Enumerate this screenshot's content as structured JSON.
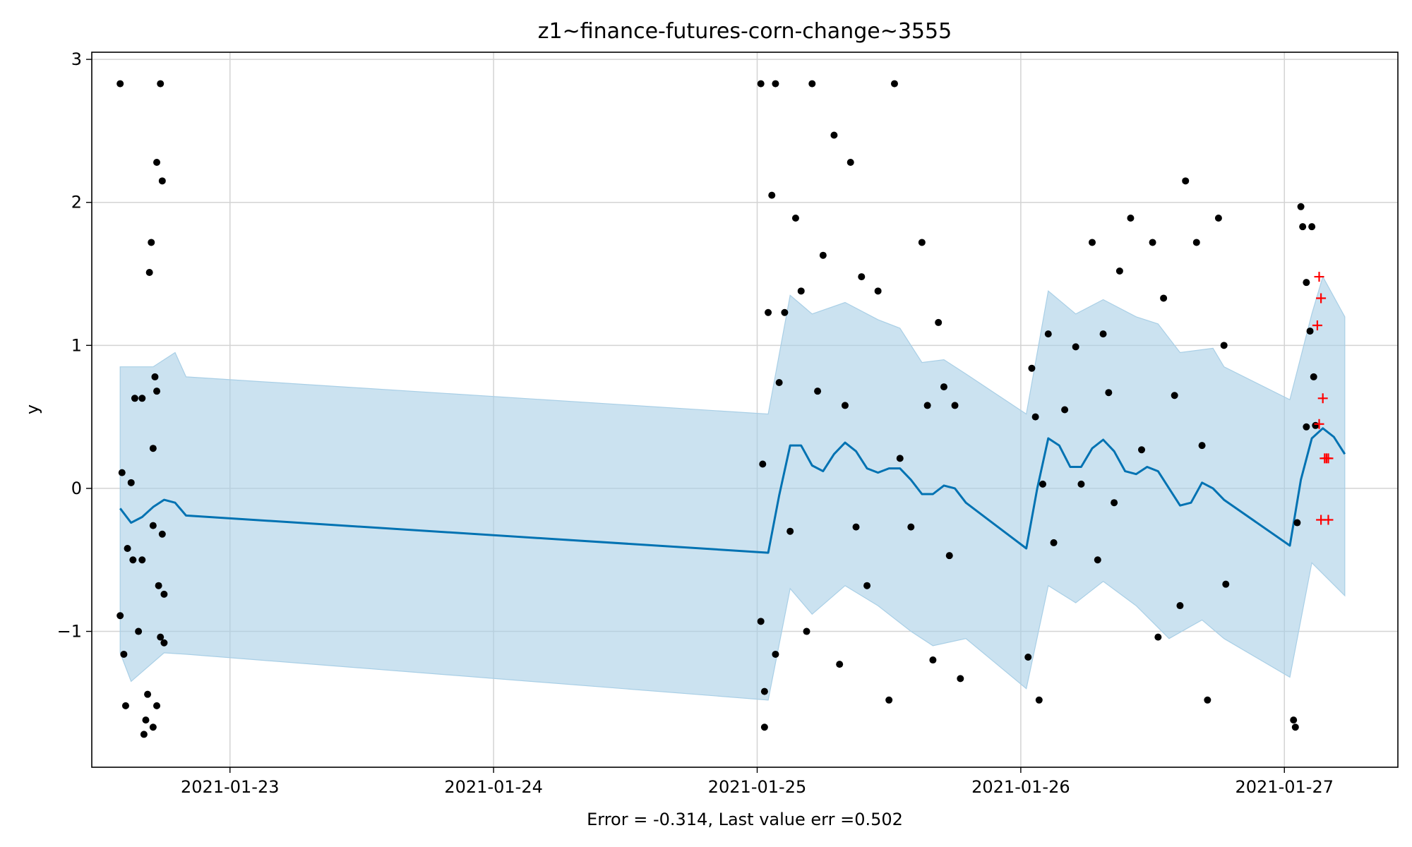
{
  "chart_data": {
    "type": "scatter",
    "title": "z1~finance-futures-corn-change~3555",
    "xlabel": "Error = -0.314, Last value err =0.502",
    "ylabel": "y",
    "x_ticks": [
      "2021-01-23",
      "2021-01-24",
      "2021-01-25",
      "2021-01-26",
      "2021-01-27"
    ],
    "y_ticks": [
      "−1",
      "0",
      "1",
      "2",
      "3"
    ],
    "xlim": [
      "2021-01-22T11:25",
      "2021-01-27T10:20"
    ],
    "ylim": [
      -1.95,
      3.05
    ],
    "grid": true,
    "colors": {
      "forecast_line": "#0072b2",
      "interval_fill": "#a9cfe6",
      "observed_points": "#000000",
      "future_points": "#ff0000"
    },
    "series": [
      {
        "kind": "forecast",
        "points": [
          [
            "2021-01-22T14:00",
            -0.14
          ],
          [
            "2021-01-22T15:00",
            -0.24
          ],
          [
            "2021-01-22T16:00",
            -0.2
          ],
          [
            "2021-01-22T17:00",
            -0.13
          ],
          [
            "2021-01-22T18:00",
            -0.08
          ],
          [
            "2021-01-22T19:00",
            -0.1
          ],
          [
            "2021-01-22T20:00",
            -0.19
          ],
          [
            "2021-01-25T01:00",
            -0.45
          ],
          [
            "2021-01-25T02:00",
            -0.05
          ],
          [
            "2021-01-25T03:00",
            0.3
          ],
          [
            "2021-01-25T04:00",
            0.3
          ],
          [
            "2021-01-25T05:00",
            0.16
          ],
          [
            "2021-01-25T06:00",
            0.12
          ],
          [
            "2021-01-25T07:00",
            0.24
          ],
          [
            "2021-01-25T08:00",
            0.32
          ],
          [
            "2021-01-25T09:00",
            0.26
          ],
          [
            "2021-01-25T10:00",
            0.14
          ],
          [
            "2021-01-25T11:00",
            0.11
          ],
          [
            "2021-01-25T12:00",
            0.14
          ],
          [
            "2021-01-25T13:00",
            0.14
          ],
          [
            "2021-01-25T14:00",
            0.06
          ],
          [
            "2021-01-25T15:00",
            -0.04
          ],
          [
            "2021-01-25T16:00",
            -0.04
          ],
          [
            "2021-01-25T17:00",
            0.02
          ],
          [
            "2021-01-25T18:00",
            0.0
          ],
          [
            "2021-01-25T19:00",
            -0.1
          ],
          [
            "2021-01-26T00:30",
            -0.42
          ],
          [
            "2021-01-26T01:30",
            0.0
          ],
          [
            "2021-01-26T02:30",
            0.35
          ],
          [
            "2021-01-26T03:30",
            0.3
          ],
          [
            "2021-01-26T04:30",
            0.15
          ],
          [
            "2021-01-26T05:30",
            0.15
          ],
          [
            "2021-01-26T06:30",
            0.28
          ],
          [
            "2021-01-26T07:30",
            0.34
          ],
          [
            "2021-01-26T08:30",
            0.26
          ],
          [
            "2021-01-26T09:30",
            0.12
          ],
          [
            "2021-01-26T10:30",
            0.1
          ],
          [
            "2021-01-26T11:30",
            0.15
          ],
          [
            "2021-01-26T12:30",
            0.12
          ],
          [
            "2021-01-26T13:30",
            0.0
          ],
          [
            "2021-01-26T14:30",
            -0.12
          ],
          [
            "2021-01-26T15:30",
            -0.1
          ],
          [
            "2021-01-26T16:30",
            0.04
          ],
          [
            "2021-01-26T17:30",
            0.0
          ],
          [
            "2021-01-26T18:30",
            -0.08
          ],
          [
            "2021-01-27T00:30",
            -0.4
          ],
          [
            "2021-01-27T01:30",
            0.06
          ],
          [
            "2021-01-27T02:30",
            0.35
          ],
          [
            "2021-01-27T03:30",
            0.42
          ],
          [
            "2021-01-27T04:30",
            0.36
          ],
          [
            "2021-01-27T05:30",
            0.24
          ]
        ],
        "upper": [
          [
            "2021-01-22T14:00",
            0.85
          ],
          [
            "2021-01-22T17:00",
            0.85
          ],
          [
            "2021-01-22T19:00",
            0.95
          ],
          [
            "2021-01-22T20:00",
            0.78
          ],
          [
            "2021-01-25T01:00",
            0.52
          ],
          [
            "2021-01-25T03:00",
            1.35
          ],
          [
            "2021-01-25T05:00",
            1.22
          ],
          [
            "2021-01-25T08:00",
            1.3
          ],
          [
            "2021-01-25T11:00",
            1.18
          ],
          [
            "2021-01-25T13:00",
            1.12
          ],
          [
            "2021-01-25T15:00",
            0.88
          ],
          [
            "2021-01-25T17:00",
            0.9
          ],
          [
            "2021-01-25T19:00",
            0.8
          ],
          [
            "2021-01-26T00:30",
            0.52
          ],
          [
            "2021-01-26T02:30",
            1.38
          ],
          [
            "2021-01-26T05:00",
            1.22
          ],
          [
            "2021-01-26T07:30",
            1.32
          ],
          [
            "2021-01-26T10:30",
            1.2
          ],
          [
            "2021-01-26T12:30",
            1.15
          ],
          [
            "2021-01-26T14:30",
            0.95
          ],
          [
            "2021-01-26T17:30",
            0.98
          ],
          [
            "2021-01-26T18:30",
            0.85
          ],
          [
            "2021-01-27T00:30",
            0.62
          ],
          [
            "2021-01-27T02:30",
            1.22
          ],
          [
            "2021-01-27T03:30",
            1.48
          ],
          [
            "2021-01-27T05:30",
            1.2
          ]
        ],
        "lower": [
          [
            "2021-01-22T14:00",
            -1.15
          ],
          [
            "2021-01-22T15:00",
            -1.35
          ],
          [
            "2021-01-22T18:00",
            -1.15
          ],
          [
            "2021-01-22T20:00",
            -1.16
          ],
          [
            "2021-01-25T01:00",
            -1.48
          ],
          [
            "2021-01-25T03:00",
            -0.7
          ],
          [
            "2021-01-25T05:00",
            -0.88
          ],
          [
            "2021-01-25T08:00",
            -0.68
          ],
          [
            "2021-01-25T11:00",
            -0.82
          ],
          [
            "2021-01-25T14:00",
            -1.0
          ],
          [
            "2021-01-25T16:00",
            -1.1
          ],
          [
            "2021-01-25T19:00",
            -1.05
          ],
          [
            "2021-01-26T00:30",
            -1.4
          ],
          [
            "2021-01-26T02:30",
            -0.68
          ],
          [
            "2021-01-26T05:00",
            -0.8
          ],
          [
            "2021-01-26T07:30",
            -0.65
          ],
          [
            "2021-01-26T10:30",
            -0.82
          ],
          [
            "2021-01-26T13:30",
            -1.05
          ],
          [
            "2021-01-26T16:30",
            -0.92
          ],
          [
            "2021-01-26T18:30",
            -1.05
          ],
          [
            "2021-01-27T00:30",
            -1.32
          ],
          [
            "2021-01-27T02:30",
            -0.52
          ],
          [
            "2021-01-27T05:30",
            -0.75
          ]
        ]
      },
      {
        "kind": "observed",
        "points": [
          [
            "2021-01-22T14:00",
            2.83
          ],
          [
            "2021-01-22T14:00",
            -0.89
          ],
          [
            "2021-01-22T14:10",
            0.11
          ],
          [
            "2021-01-22T14:20",
            -1.16
          ],
          [
            "2021-01-22T14:30",
            -1.52
          ],
          [
            "2021-01-22T14:40",
            -0.42
          ],
          [
            "2021-01-22T15:00",
            0.04
          ],
          [
            "2021-01-22T15:10",
            -0.5
          ],
          [
            "2021-01-22T15:20",
            0.63
          ],
          [
            "2021-01-22T15:40",
            -1.0
          ],
          [
            "2021-01-22T16:00",
            0.63
          ],
          [
            "2021-01-22T16:00",
            -0.5
          ],
          [
            "2021-01-22T16:10",
            -1.72
          ],
          [
            "2021-01-22T16:20",
            -1.62
          ],
          [
            "2021-01-22T16:30",
            -1.44
          ],
          [
            "2021-01-22T16:40",
            1.51
          ],
          [
            "2021-01-22T16:50",
            1.72
          ],
          [
            "2021-01-22T17:00",
            0.28
          ],
          [
            "2021-01-22T17:00",
            -0.26
          ],
          [
            "2021-01-22T17:00",
            -1.67
          ],
          [
            "2021-01-22T17:10",
            0.78
          ],
          [
            "2021-01-22T17:20",
            2.28
          ],
          [
            "2021-01-22T17:20",
            0.68
          ],
          [
            "2021-01-22T17:20",
            -1.52
          ],
          [
            "2021-01-22T17:30",
            -0.68
          ],
          [
            "2021-01-22T17:40",
            2.83
          ],
          [
            "2021-01-22T17:40",
            -1.04
          ],
          [
            "2021-01-22T17:50",
            2.15
          ],
          [
            "2021-01-22T17:50",
            -0.32
          ],
          [
            "2021-01-22T18:00",
            -0.74
          ],
          [
            "2021-01-22T18:00",
            -1.08
          ],
          [
            "2021-01-25T00:20",
            2.83
          ],
          [
            "2021-01-25T00:20",
            -0.93
          ],
          [
            "2021-01-25T00:30",
            0.17
          ],
          [
            "2021-01-25T00:40",
            -1.42
          ],
          [
            "2021-01-25T00:40",
            -1.67
          ],
          [
            "2021-01-25T01:00",
            1.23
          ],
          [
            "2021-01-25T01:20",
            2.05
          ],
          [
            "2021-01-25T01:40",
            2.83
          ],
          [
            "2021-01-25T01:40",
            -1.16
          ],
          [
            "2021-01-25T02:00",
            0.74
          ],
          [
            "2021-01-25T02:30",
            1.23
          ],
          [
            "2021-01-25T03:00",
            -0.3
          ],
          [
            "2021-01-25T03:30",
            1.89
          ],
          [
            "2021-01-25T04:00",
            1.38
          ],
          [
            "2021-01-25T04:30",
            -1.0
          ],
          [
            "2021-01-25T05:00",
            2.83
          ],
          [
            "2021-01-25T05:30",
            0.68
          ],
          [
            "2021-01-25T06:00",
            1.63
          ],
          [
            "2021-01-25T07:00",
            2.47
          ],
          [
            "2021-01-25T07:30",
            -1.23
          ],
          [
            "2021-01-25T08:00",
            0.58
          ],
          [
            "2021-01-25T08:30",
            2.28
          ],
          [
            "2021-01-25T09:00",
            -0.27
          ],
          [
            "2021-01-25T09:30",
            1.48
          ],
          [
            "2021-01-25T10:00",
            -0.68
          ],
          [
            "2021-01-25T11:00",
            1.38
          ],
          [
            "2021-01-25T12:00",
            -1.48
          ],
          [
            "2021-01-25T12:30",
            2.83
          ],
          [
            "2021-01-25T13:00",
            0.21
          ],
          [
            "2021-01-25T14:00",
            -0.27
          ],
          [
            "2021-01-25T15:00",
            1.72
          ],
          [
            "2021-01-25T15:30",
            0.58
          ],
          [
            "2021-01-25T16:00",
            -1.2
          ],
          [
            "2021-01-25T16:30",
            1.16
          ],
          [
            "2021-01-25T17:00",
            0.71
          ],
          [
            "2021-01-25T17:30",
            -0.47
          ],
          [
            "2021-01-25T18:00",
            0.58
          ],
          [
            "2021-01-25T18:30",
            -1.33
          ],
          [
            "2021-01-26T00:40",
            -1.18
          ],
          [
            "2021-01-26T01:00",
            0.84
          ],
          [
            "2021-01-26T01:20",
            0.5
          ],
          [
            "2021-01-26T01:40",
            -1.48
          ],
          [
            "2021-01-26T02:00",
            0.03
          ],
          [
            "2021-01-26T02:30",
            1.08
          ],
          [
            "2021-01-26T03:00",
            -0.38
          ],
          [
            "2021-01-26T04:00",
            0.55
          ],
          [
            "2021-01-26T05:00",
            0.99
          ],
          [
            "2021-01-26T05:30",
            0.03
          ],
          [
            "2021-01-26T06:30",
            1.72
          ],
          [
            "2021-01-26T07:00",
            -0.5
          ],
          [
            "2021-01-26T07:30",
            1.08
          ],
          [
            "2021-01-26T08:00",
            0.67
          ],
          [
            "2021-01-26T08:30",
            -0.1
          ],
          [
            "2021-01-26T09:00",
            1.52
          ],
          [
            "2021-01-26T10:00",
            1.89
          ],
          [
            "2021-01-26T11:00",
            0.27
          ],
          [
            "2021-01-26T12:00",
            1.72
          ],
          [
            "2021-01-26T12:30",
            -1.04
          ],
          [
            "2021-01-26T13:00",
            1.33
          ],
          [
            "2021-01-26T14:00",
            0.65
          ],
          [
            "2021-01-26T14:30",
            -0.82
          ],
          [
            "2021-01-26T15:00",
            2.15
          ],
          [
            "2021-01-26T16:00",
            1.72
          ],
          [
            "2021-01-26T16:30",
            0.3
          ],
          [
            "2021-01-26T17:00",
            -1.48
          ],
          [
            "2021-01-26T18:00",
            1.89
          ],
          [
            "2021-01-26T18:30",
            1.0
          ],
          [
            "2021-01-26T18:40",
            -0.67
          ],
          [
            "2021-01-27T00:50",
            -1.62
          ],
          [
            "2021-01-27T01:00",
            -1.67
          ],
          [
            "2021-01-27T01:10",
            -0.24
          ],
          [
            "2021-01-27T01:30",
            1.97
          ],
          [
            "2021-01-27T01:40",
            1.83
          ],
          [
            "2021-01-27T02:00",
            1.44
          ],
          [
            "2021-01-27T02:00",
            0.43
          ],
          [
            "2021-01-27T02:20",
            1.1
          ],
          [
            "2021-01-27T02:30",
            1.83
          ],
          [
            "2021-01-27T02:40",
            0.78
          ],
          [
            "2021-01-27T02:50",
            0.44
          ]
        ]
      },
      {
        "kind": "future",
        "points": [
          [
            "2021-01-27T03:00",
            1.14
          ],
          [
            "2021-01-27T03:10",
            1.48
          ],
          [
            "2021-01-27T03:10",
            0.45
          ],
          [
            "2021-01-27T03:20",
            -0.22
          ],
          [
            "2021-01-27T03:20",
            1.33
          ],
          [
            "2021-01-27T03:30",
            0.63
          ],
          [
            "2021-01-27T03:40",
            0.21
          ],
          [
            "2021-01-27T03:50",
            0.21
          ],
          [
            "2021-01-27T04:00",
            -0.22
          ],
          [
            "2021-01-27T04:00",
            0.21
          ]
        ]
      }
    ]
  }
}
